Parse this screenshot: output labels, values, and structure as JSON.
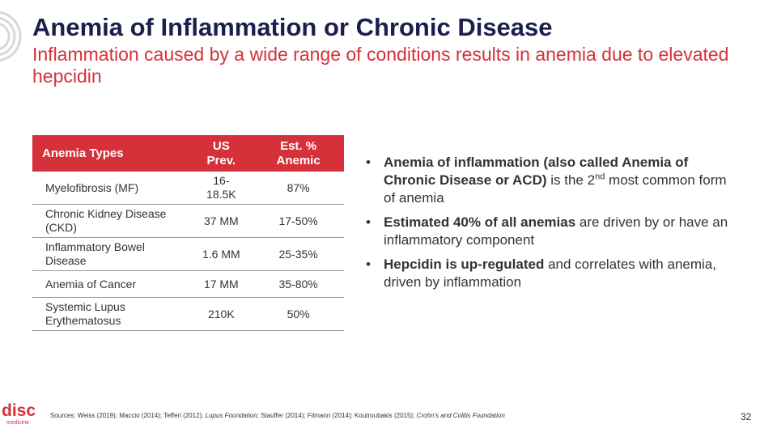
{
  "header": {
    "title": "Anemia of Inflammation or Chronic Disease",
    "subtitle": "Inflammation caused by a wide range of conditions results in anemia due to elevated hepcidin"
  },
  "table": {
    "headers": [
      "Anemia Types",
      "US Prev.",
      "Est. % Anemic"
    ],
    "rows": [
      [
        "Myelofibrosis (MF)",
        "16-18.5K",
        "87%"
      ],
      [
        "Chronic Kidney Disease (CKD)",
        "37 MM",
        "17-50%"
      ],
      [
        "Inflammatory Bowel Disease",
        "1.6 MM",
        "25-35%"
      ],
      [
        "Anemia of Cancer",
        "17 MM",
        "35-80%"
      ],
      [
        "Systemic Lupus Erythematosus",
        "210K",
        "50%"
      ]
    ]
  },
  "bullets": [
    {
      "bold": "Anemia of inflammation (also called Anemia of Chronic Disease or ACD)",
      "text1": " is the 2",
      "sup": "nd",
      "text2": " most common form of anemia"
    },
    {
      "bold": "Estimated 40% of all anemias",
      "text1": " are driven by or have an inflammatory component"
    },
    {
      "bold": "Hepcidin is up-regulated",
      "text1": " and correlates with anemia, driven by inflammation"
    }
  ],
  "footer": {
    "sources_prefix": "Sources: Weiss (2019); Maccio (2014); Tefferi (2012); ",
    "sources_italic1": "Lupus Foundation;",
    "sources_mid": " Stauffer (2014); Filmann (2014); Koutroubakis (2015); ",
    "sources_italic2": "Crohn’s and Colitis Foundation",
    "page_number": "32",
    "logo_word": "disc",
    "logo_sub": "medicine"
  },
  "colors": {
    "brand_red": "#d6313a",
    "title_navy": "#1a1f4d"
  }
}
